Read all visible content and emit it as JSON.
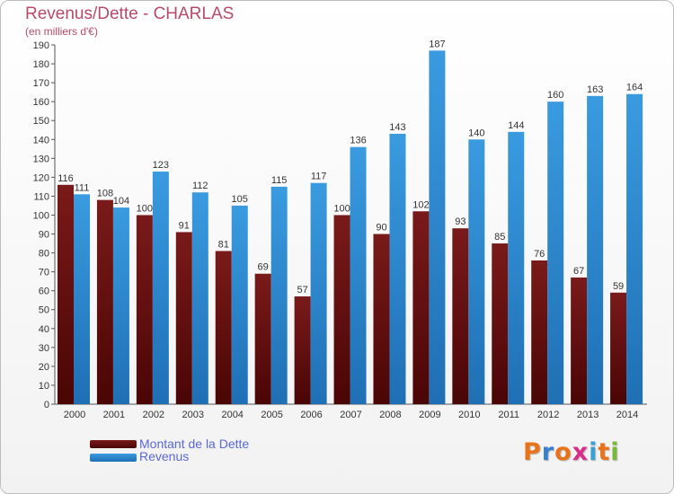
{
  "chart_data": {
    "type": "bar",
    "title": "Revenus/Dette - CHARLAS",
    "subtitle": "(en milliers d'€)",
    "categories": [
      "2000",
      "2001",
      "2002",
      "2003",
      "2004",
      "2005",
      "2006",
      "2007",
      "2008",
      "2009",
      "2010",
      "2011",
      "2012",
      "2013",
      "2014"
    ],
    "series": [
      {
        "name": "Montant de la Dette",
        "color": "#7a1a1a",
        "values": [
          116,
          108,
          100,
          91,
          81,
          69,
          57,
          100,
          90,
          102,
          93,
          85,
          76,
          67,
          59
        ]
      },
      {
        "name": "Revenus",
        "color": "#3a9be0",
        "values": [
          111,
          104,
          123,
          112,
          105,
          115,
          117,
          136,
          143,
          187,
          140,
          144,
          160,
          163,
          164
        ]
      }
    ],
    "ylim": [
      0,
      190
    ],
    "ytick_step": 10,
    "grid": false,
    "legend_position": "bottom-left"
  },
  "logo": {
    "text": "Proxiti",
    "colors": [
      "#e8731a",
      "#3a7fd0",
      "#e8731a",
      "#d62f8a",
      "#3aa0d8",
      "#e8731a",
      "#7ab83a"
    ]
  }
}
